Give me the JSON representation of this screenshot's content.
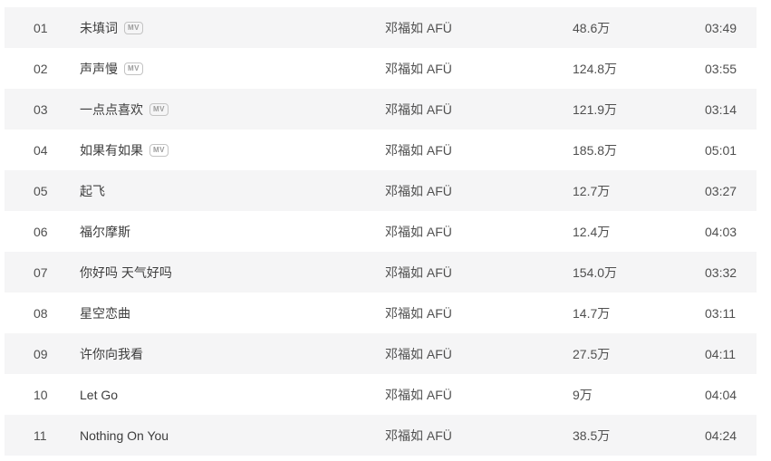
{
  "table": {
    "mv_badge_label": "MV",
    "columns": [
      "index",
      "title",
      "artist",
      "plays",
      "duration"
    ],
    "rows": [
      {
        "index": "01",
        "title": "未填词",
        "mv": true,
        "artist": "邓福如 AFÜ",
        "plays": "48.6万",
        "duration": "03:49"
      },
      {
        "index": "02",
        "title": "声声慢",
        "mv": true,
        "artist": "邓福如 AFÜ",
        "plays": "124.8万",
        "duration": "03:55"
      },
      {
        "index": "03",
        "title": "一点点喜欢",
        "mv": true,
        "artist": "邓福如 AFÜ",
        "plays": "121.9万",
        "duration": "03:14"
      },
      {
        "index": "04",
        "title": "如果有如果",
        "mv": true,
        "artist": "邓福如 AFÜ",
        "plays": "185.8万",
        "duration": "05:01"
      },
      {
        "index": "05",
        "title": "起飞",
        "mv": false,
        "artist": "邓福如 AFÜ",
        "plays": "12.7万",
        "duration": "03:27"
      },
      {
        "index": "06",
        "title": "福尔摩斯",
        "mv": false,
        "artist": "邓福如 AFÜ",
        "plays": "12.4万",
        "duration": "04:03"
      },
      {
        "index": "07",
        "title": "你好吗 天气好吗",
        "mv": false,
        "artist": "邓福如 AFÜ",
        "plays": "154.0万",
        "duration": "03:32"
      },
      {
        "index": "08",
        "title": "星空恋曲",
        "mv": false,
        "artist": "邓福如 AFÜ",
        "plays": "14.7万",
        "duration": "03:11"
      },
      {
        "index": "09",
        "title": "许你向我看",
        "mv": false,
        "artist": "邓福如 AFÜ",
        "plays": "27.5万",
        "duration": "04:11"
      },
      {
        "index": "10",
        "title": "Let Go",
        "mv": false,
        "artist": "邓福如 AFÜ",
        "plays": "9万",
        "duration": "04:04"
      },
      {
        "index": "11",
        "title": "Nothing On You",
        "mv": false,
        "artist": "邓福如 AFÜ",
        "plays": "38.5万",
        "duration": "04:24"
      }
    ]
  },
  "colors": {
    "row_alt_bg": "#f5f5f6",
    "row_bg": "#ffffff",
    "title_text": "#3d3d3d",
    "meta_text": "#4f4f4f",
    "mv_badge_border": "#c3c3c3",
    "mv_badge_text": "#9b9b9b"
  }
}
